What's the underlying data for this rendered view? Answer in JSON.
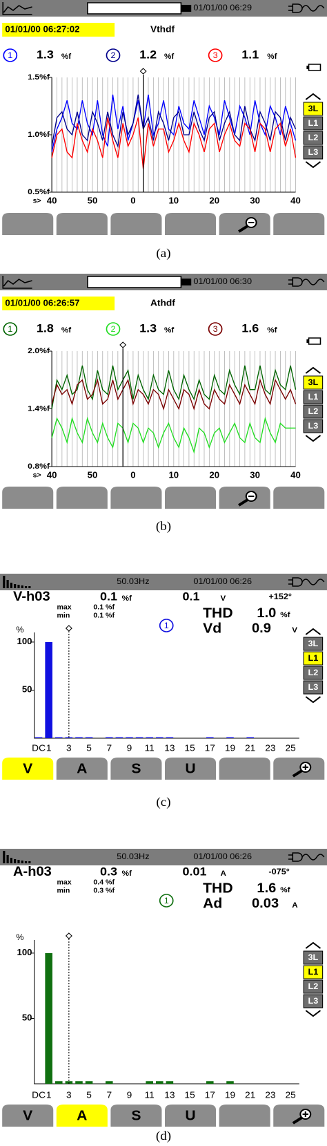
{
  "panels": [
    {
      "date": "01/01/00 06:29",
      "timestamp": "01/01/00 06:27:02",
      "title": "Vthdf",
      "readings": [
        "1.3",
        "1.2",
        "1.1"
      ],
      "unit": "%f",
      "selectors": [
        "3L",
        "L1",
        "L2",
        "L3"
      ],
      "caption": "(a)"
    },
    {
      "date": "01/01/00 06:30",
      "timestamp": "01/01/00 06:26:57",
      "title": "Athdf",
      "readings": [
        "1.8",
        "1.3",
        "1.6"
      ],
      "unit": "%f",
      "selectors": [
        "3L",
        "L1",
        "L2",
        "L3"
      ],
      "caption": "(b)"
    },
    {
      "frequency": "50.03Hz",
      "date": "01/01/00 06:26",
      "label": "V-h03",
      "level": "0.1",
      "level_unit": "%f",
      "magnitude": "0.1",
      "magnitude_unit": "V",
      "phase": "+152°",
      "max_label": "max",
      "max": "0.1 %f",
      "min_label": "min",
      "min": "0.1 %f",
      "channel": "1",
      "thd_label": "THD",
      "thd": "1.0",
      "thd_unit": "%f",
      "dist_label": "Vd",
      "dist": "0.9",
      "dist_unit": "V",
      "selectors": [
        "3L",
        "L1",
        "L2",
        "L3"
      ],
      "tabs": [
        "V",
        "A",
        "S",
        "U"
      ],
      "caption": "(c)"
    },
    {
      "frequency": "50.03Hz",
      "date": "01/01/00 06:26",
      "label": "A-h03",
      "level": "0.3",
      "level_unit": "%f",
      "magnitude": "0.01",
      "magnitude_unit": "A",
      "phase": "-075°",
      "max_label": "max",
      "max": "0.4 %f",
      "min_label": "min",
      "min": "0.3 %f",
      "channel": "1",
      "thd_label": "THD",
      "thd": "1.6",
      "thd_unit": "%f",
      "dist_label": "Ad",
      "dist": "0.03",
      "dist_unit": "A",
      "selectors": [
        "3L",
        "L1",
        "L2",
        "L3"
      ],
      "tabs": [
        "V",
        "A",
        "S",
        "U"
      ],
      "caption": "(d)"
    }
  ],
  "chart_data": [
    {
      "type": "line",
      "x_label": "s>",
      "ylim": [
        0.5,
        1.5
      ],
      "yticks": [
        {
          "value": 0.5,
          "label": "0.5%f"
        },
        {
          "value": 1.0,
          "label": "1.0%f"
        },
        {
          "value": 1.5,
          "label": "1.5%f"
        }
      ],
      "grid": true,
      "categories": [
        "40",
        null,
        null,
        null,
        null,
        null,
        null,
        null,
        "50",
        null,
        null,
        null,
        null,
        null,
        null,
        null,
        "0",
        null,
        null,
        null,
        null,
        null,
        null,
        null,
        "10",
        null,
        null,
        null,
        null,
        null,
        null,
        null,
        "20",
        null,
        null,
        null,
        null,
        null,
        null,
        null,
        "30",
        null,
        null,
        null,
        null,
        null,
        null,
        null,
        "40"
      ],
      "series": [
        {
          "name": "1",
          "color": "#0000ff",
          "values": [
            0.85,
            1.05,
            1.15,
            1.3,
            1.1,
            1.05,
            1.3,
            1.1,
            1.0,
            1.3,
            1.0,
            0.9,
            1.35,
            1.05,
            1.25,
            0.95,
            1.1,
            1.3,
            1.05,
            1.35,
            1.0,
            1.1,
            1.3,
            1.05,
            1.0,
            1.25,
            1.1,
            1.05,
            1.3,
            1.15,
            1.0,
            1.25,
            1.15,
            1.0,
            1.3,
            1.15,
            1.0,
            1.25,
            1.15,
            1.0,
            1.3,
            1.1,
            1.0,
            1.25,
            1.15,
            1.0,
            1.25,
            1.1,
            0.95
          ]
        },
        {
          "name": "2",
          "color": "#00008b",
          "values": [
            0.9,
            1.15,
            1.2,
            1.05,
            1.0,
            1.2,
            1.0,
            0.95,
            1.2,
            1.1,
            0.95,
            1.2,
            1.0,
            0.9,
            1.2,
            1.0,
            1.1,
            1.35,
            1.05,
            1.15,
            0.95,
            1.2,
            1.1,
            0.95,
            1.15,
            1.2,
            1.0,
            1.0,
            1.2,
            1.05,
            0.95,
            1.15,
            1.2,
            0.95,
            1.1,
            1.2,
            1.0,
            0.95,
            1.25,
            1.05,
            0.95,
            1.2,
            1.1,
            0.95,
            1.2,
            1.15,
            0.95,
            1.15,
            1.05
          ]
        },
        {
          "name": "3",
          "color": "#ff0000",
          "values": [
            0.8,
            1.0,
            1.05,
            0.85,
            0.8,
            1.1,
            0.95,
            0.85,
            1.05,
            0.95,
            0.8,
            1.15,
            0.95,
            0.8,
            1.1,
            0.9,
            1.0,
            1.15,
            0.7,
            1.1,
            0.9,
            1.05,
            1.05,
            0.85,
            0.95,
            1.1,
            0.95,
            0.85,
            1.1,
            1.0,
            0.85,
            1.05,
            1.1,
            0.85,
            1.0,
            1.1,
            0.95,
            0.9,
            1.1,
            1.05,
            0.85,
            1.1,
            1.05,
            0.85,
            1.05,
            1.1,
            0.9,
            1.05,
            0.8
          ]
        }
      ]
    },
    {
      "type": "line",
      "x_label": "s>",
      "ylim": [
        0.8,
        2.0
      ],
      "yticks": [
        {
          "value": 0.8,
          "label": "0.8%f"
        },
        {
          "value": 1.4,
          "label": "1.4%f"
        },
        {
          "value": 2.0,
          "label": "2.0%f"
        }
      ],
      "grid": true,
      "categories": [
        "40",
        null,
        null,
        null,
        null,
        null,
        null,
        null,
        "50",
        null,
        null,
        null,
        null,
        null,
        null,
        null,
        "0",
        null,
        null,
        null,
        null,
        null,
        null,
        null,
        "10",
        null,
        null,
        null,
        null,
        null,
        null,
        null,
        "20",
        null,
        null,
        null,
        null,
        null,
        null,
        null,
        "30",
        null,
        null,
        null,
        null,
        null,
        null,
        null,
        "40"
      ],
      "series": [
        {
          "name": "1",
          "color": "#006400",
          "values": [
            1.4,
            1.7,
            1.6,
            1.75,
            1.55,
            1.6,
            1.85,
            1.6,
            1.5,
            1.8,
            1.6,
            1.55,
            1.85,
            1.6,
            1.7,
            1.8,
            1.5,
            1.75,
            1.6,
            1.5,
            1.75,
            1.6,
            1.55,
            1.8,
            1.6,
            1.5,
            1.75,
            1.6,
            1.5,
            1.7,
            1.55,
            1.5,
            1.75,
            1.6,
            1.55,
            1.8,
            1.65,
            1.55,
            1.85,
            1.6,
            1.6,
            1.85,
            1.6,
            1.55,
            1.8,
            1.65,
            1.6,
            1.85,
            1.6
          ]
        },
        {
          "name": "2",
          "color": "#22dd22",
          "values": [
            1.1,
            1.3,
            1.2,
            1.05,
            1.3,
            1.15,
            1.05,
            1.3,
            1.15,
            1.05,
            1.25,
            1.1,
            1.0,
            1.25,
            1.2,
            1.05,
            1.25,
            1.2,
            1.05,
            1.2,
            1.15,
            1.0,
            1.15,
            1.25,
            1.1,
            1.0,
            1.2,
            1.1,
            0.95,
            1.2,
            1.15,
            1.0,
            1.15,
            1.2,
            1.05,
            1.15,
            1.25,
            1.1,
            1.05,
            1.25,
            1.1,
            1.05,
            1.3,
            1.15,
            1.05,
            1.25,
            1.2,
            1.2,
            1.2
          ]
        },
        {
          "name": "3",
          "color": "#7a0000",
          "values": [
            1.45,
            1.65,
            1.55,
            1.6,
            1.45,
            1.65,
            1.7,
            1.5,
            1.55,
            1.7,
            1.45,
            1.5,
            1.7,
            1.5,
            1.6,
            1.7,
            1.45,
            1.6,
            1.55,
            1.45,
            1.6,
            1.55,
            1.4,
            1.6,
            1.5,
            1.4,
            1.6,
            1.55,
            1.4,
            1.6,
            1.45,
            1.4,
            1.6,
            1.5,
            1.45,
            1.65,
            1.55,
            1.45,
            1.65,
            1.55,
            1.45,
            1.7,
            1.55,
            1.45,
            1.7,
            1.6,
            1.5,
            1.6,
            1.45
          ]
        }
      ]
    },
    {
      "type": "bar",
      "ylabel": "%",
      "ylim": [
        0,
        110
      ],
      "yticks": [
        50,
        100
      ],
      "color": "#1010e0",
      "categories": [
        "DC",
        "1",
        null,
        "3",
        null,
        "5",
        null,
        "7",
        null,
        "9",
        null,
        "11",
        null,
        "13",
        null,
        "15",
        null,
        "17",
        null,
        "19",
        null,
        "21",
        null,
        "23",
        null,
        "25"
      ],
      "values": [
        1,
        100,
        1,
        1,
        1,
        1,
        0,
        1,
        1,
        1,
        1,
        1,
        1,
        1,
        0,
        0,
        0,
        1,
        0,
        1,
        0,
        1,
        0,
        0,
        0,
        0
      ]
    },
    {
      "type": "bar",
      "ylabel": "%",
      "ylim": [
        0,
        110
      ],
      "yticks": [
        50,
        100
      ],
      "color": "#107010",
      "categories": [
        "DC",
        "1",
        null,
        "3",
        null,
        "5",
        null,
        "7",
        null,
        "9",
        null,
        "11",
        null,
        "13",
        null,
        "15",
        null,
        "17",
        null,
        "19",
        null,
        "21",
        null,
        "23",
        null,
        "25"
      ],
      "values": [
        0,
        100,
        2,
        2,
        2,
        2,
        0,
        2,
        0,
        0,
        0,
        2,
        2,
        2,
        0,
        0,
        0,
        2,
        0,
        2,
        0,
        0,
        0,
        0,
        0,
        0
      ]
    }
  ]
}
